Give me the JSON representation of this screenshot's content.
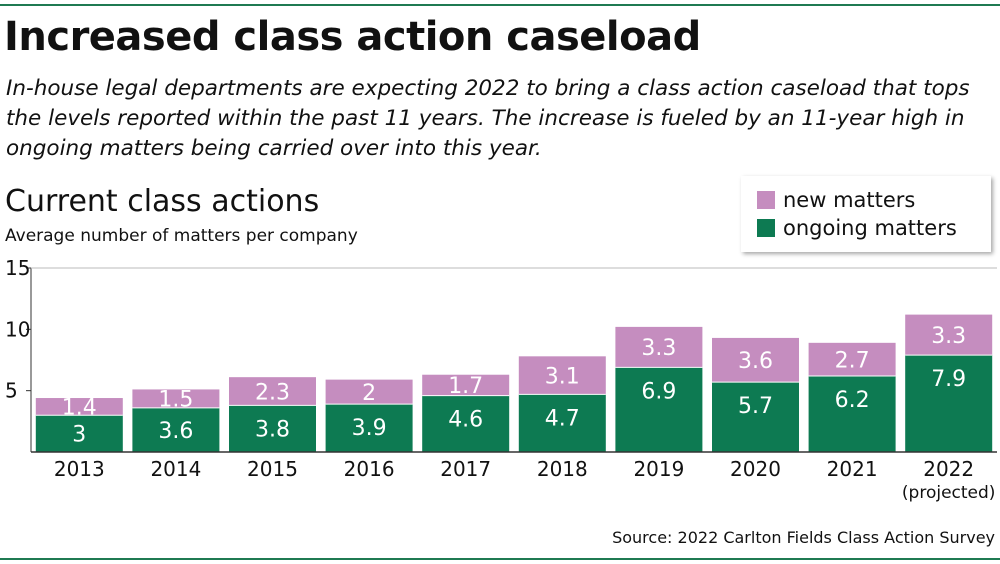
{
  "title": "Increased class action caseload",
  "subtitle": "In-house legal departments are expecting 2022 to bring a class action caseload that tops the levels reported within the past 11 years. The increase is fueled by an 11-year high in ongoing matters being carried over into this year.",
  "source": "Source: 2022 Carlton Fields Class Action Survey",
  "colors": {
    "ongoing": "#0d7a52",
    "new": "#c58dbf",
    "rule": "#1f7a52"
  },
  "chart_data": {
    "type": "bar",
    "stacked": true,
    "title": "Current class actions",
    "ylabel": "Average number of matters per company",
    "xlabel": "",
    "categories": [
      "2013",
      "2014",
      "2015",
      "2016",
      "2017",
      "2018",
      "2019",
      "2020",
      "2021",
      "2022"
    ],
    "category_notes": [
      "",
      "",
      "",
      "",
      "",
      "",
      "",
      "",
      "",
      "(projected)"
    ],
    "series": [
      {
        "name": "ongoing matters",
        "values": [
          3,
          3.6,
          3.8,
          3.9,
          4.6,
          4.7,
          6.9,
          5.7,
          6.2,
          7.9
        ]
      },
      {
        "name": "new matters",
        "values": [
          1.4,
          1.5,
          2.3,
          2,
          1.7,
          3.1,
          3.3,
          3.6,
          2.7,
          3.3
        ]
      }
    ],
    "data_labels": [
      [
        "3",
        "3.6",
        "3.8",
        "3.9",
        "4.6",
        "4.7",
        "6.9",
        "5.7",
        "6.2",
        "7.9"
      ],
      [
        "1.4",
        "1.5",
        "2.3",
        "2",
        "1.7",
        "3.1",
        "3.3",
        "3.6",
        "2.7",
        "3.3"
      ]
    ],
    "yticks": [
      5,
      10,
      15
    ],
    "ytick_labels": [
      "5",
      "10",
      "15"
    ],
    "ylim": [
      0,
      15
    ],
    "grid": false,
    "legend": {
      "position": "top-right",
      "order": [
        "new matters",
        "ongoing matters"
      ]
    }
  }
}
